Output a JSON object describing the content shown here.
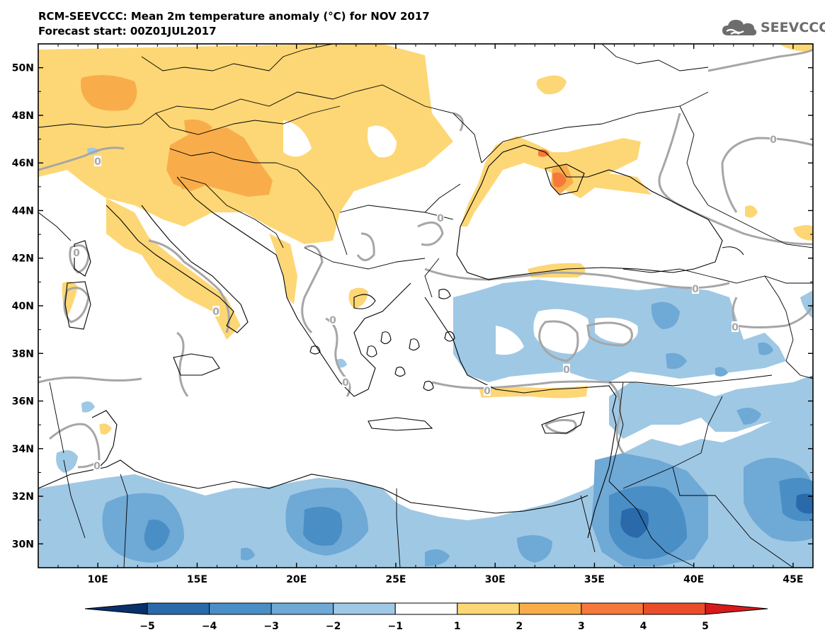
{
  "title_line1": "RCM-SEEVCCC: Mean 2m temperature anomaly (°C) for NOV 2017",
  "title_line2": "Forecast start: 00Z01JUL2017",
  "logo_text": "SEEVCCC",
  "map": {
    "lon_range": [
      7,
      46
    ],
    "lat_range": [
      29,
      51
    ],
    "lat_labels": [
      "30N",
      "32N",
      "34N",
      "36N",
      "38N",
      "40N",
      "42N",
      "44N",
      "46N",
      "48N",
      "50N"
    ],
    "lat_values": [
      30,
      32,
      34,
      36,
      38,
      40,
      42,
      44,
      46,
      48,
      50
    ],
    "lon_labels": [
      "10E",
      "15E",
      "20E",
      "25E",
      "30E",
      "35E",
      "40E",
      "45E"
    ],
    "lon_values": [
      10,
      15,
      20,
      25,
      30,
      35,
      40,
      45
    ],
    "zero_contour_label": "0"
  },
  "colorbar": {
    "tick_labels": [
      "−5",
      "−4",
      "−3",
      "−2",
      "−1",
      "1",
      "2",
      "3",
      "4",
      "5"
    ],
    "colors": [
      "#08306b",
      "#2a6aab",
      "#4a8ec6",
      "#6fa9d6",
      "#9fc8e4",
      "#ffffff",
      "#fdd775",
      "#f9ad4a",
      "#f5793a",
      "#ea4d2a",
      "#d7191c"
    ]
  }
}
